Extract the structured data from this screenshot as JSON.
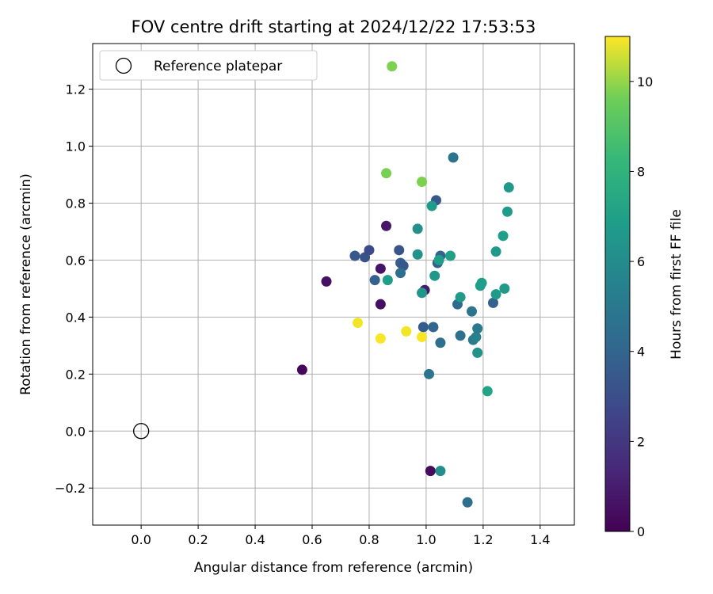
{
  "chart_data": {
    "type": "scatter",
    "title": "FOV centre drift starting at 2024/12/22 17:53:53",
    "xlabel": "Angular distance from reference (arcmin)",
    "ylabel": "Rotation from reference (arcmin)",
    "xlim": [
      -0.17,
      1.52
    ],
    "ylim": [
      -0.33,
      1.36
    ],
    "xticks": [
      0.0,
      0.2,
      0.4,
      0.6,
      0.8,
      1.0,
      1.2,
      1.4
    ],
    "xtick_labels": [
      "0.0",
      "0.2",
      "0.4",
      "0.6",
      "0.8",
      "1.0",
      "1.2",
      "1.4"
    ],
    "yticks": [
      -0.2,
      0.0,
      0.2,
      0.4,
      0.6,
      0.8,
      1.0,
      1.2
    ],
    "ytick_labels": [
      "−0.2",
      "0.0",
      "0.2",
      "0.4",
      "0.6",
      "0.8",
      "1.0",
      "1.2"
    ],
    "grid": true,
    "legend": {
      "placement": "top-left",
      "entries": [
        "Reference platepar"
      ]
    },
    "reference_point": {
      "x": 0.0,
      "y": 0.0,
      "label": "Reference platepar"
    },
    "colorbar": {
      "label": "Hours from first FF file",
      "range": [
        0,
        11
      ],
      "ticks": [
        0,
        2,
        4,
        6,
        8,
        10
      ],
      "tick_labels": [
        "0",
        "2",
        "4",
        "6",
        "8",
        "10"
      ],
      "colormap": "viridis"
    },
    "points": [
      {
        "x": 0.565,
        "y": 0.215,
        "c": 0.2
      },
      {
        "x": 0.65,
        "y": 0.525,
        "c": 0.5
      },
      {
        "x": 0.84,
        "y": 0.57,
        "c": 0.6
      },
      {
        "x": 0.84,
        "y": 0.445,
        "c": 0.4
      },
      {
        "x": 0.86,
        "y": 0.72,
        "c": 0.7
      },
      {
        "x": 0.995,
        "y": 0.495,
        "c": 0.8
      },
      {
        "x": 1.015,
        "y": -0.14,
        "c": 0.3
      },
      {
        "x": 0.75,
        "y": 0.615,
        "c": 3.0
      },
      {
        "x": 0.785,
        "y": 0.61,
        "c": 2.8
      },
      {
        "x": 0.8,
        "y": 0.635,
        "c": 2.5
      },
      {
        "x": 0.82,
        "y": 0.53,
        "c": 3.4
      },
      {
        "x": 0.905,
        "y": 0.635,
        "c": 2.9
      },
      {
        "x": 0.91,
        "y": 0.59,
        "c": 3.3
      },
      {
        "x": 0.92,
        "y": 0.58,
        "c": 3.0
      },
      {
        "x": 0.91,
        "y": 0.555,
        "c": 4.0
      },
      {
        "x": 0.99,
        "y": 0.365,
        "c": 3.2
      },
      {
        "x": 1.025,
        "y": 0.365,
        "c": 3.6
      },
      {
        "x": 1.01,
        "y": 0.2,
        "c": 4.3
      },
      {
        "x": 1.035,
        "y": 0.81,
        "c": 3.0
      },
      {
        "x": 1.04,
        "y": 0.59,
        "c": 3.3
      },
      {
        "x": 1.05,
        "y": 0.615,
        "c": 3.5
      },
      {
        "x": 1.05,
        "y": 0.31,
        "c": 4.0
      },
      {
        "x": 1.095,
        "y": 0.96,
        "c": 4.2
      },
      {
        "x": 1.11,
        "y": 0.445,
        "c": 3.8
      },
      {
        "x": 1.12,
        "y": 0.335,
        "c": 4.0
      },
      {
        "x": 1.16,
        "y": 0.42,
        "c": 4.3
      },
      {
        "x": 1.165,
        "y": 0.32,
        "c": 4.6
      },
      {
        "x": 1.175,
        "y": 0.33,
        "c": 4.8
      },
      {
        "x": 1.18,
        "y": 0.36,
        "c": 4.5
      },
      {
        "x": 1.235,
        "y": 0.45,
        "c": 3.4
      },
      {
        "x": 1.145,
        "y": -0.25,
        "c": 4.0
      },
      {
        "x": 0.865,
        "y": 0.53,
        "c": 6.1
      },
      {
        "x": 0.97,
        "y": 0.71,
        "c": 5.5
      },
      {
        "x": 0.97,
        "y": 0.62,
        "c": 5.6
      },
      {
        "x": 0.985,
        "y": 0.485,
        "c": 5.8
      },
      {
        "x": 1.02,
        "y": 0.79,
        "c": 6.0
      },
      {
        "x": 1.03,
        "y": 0.545,
        "c": 5.8
      },
      {
        "x": 1.045,
        "y": 0.6,
        "c": 6.1
      },
      {
        "x": 1.085,
        "y": 0.615,
        "c": 6.2
      },
      {
        "x": 1.05,
        "y": -0.14,
        "c": 5.4
      },
      {
        "x": 1.12,
        "y": 0.47,
        "c": 6.0
      },
      {
        "x": 1.18,
        "y": 0.275,
        "c": 5.6
      },
      {
        "x": 1.19,
        "y": 0.51,
        "c": 6.1
      },
      {
        "x": 1.195,
        "y": 0.52,
        "c": 6.1
      },
      {
        "x": 1.215,
        "y": 0.14,
        "c": 6.4
      },
      {
        "x": 1.245,
        "y": 0.48,
        "c": 6.0
      },
      {
        "x": 1.245,
        "y": 0.63,
        "c": 5.9
      },
      {
        "x": 1.27,
        "y": 0.685,
        "c": 6.1
      },
      {
        "x": 1.275,
        "y": 0.5,
        "c": 6.0
      },
      {
        "x": 1.285,
        "y": 0.77,
        "c": 6.0
      },
      {
        "x": 1.29,
        "y": 0.855,
        "c": 5.9
      },
      {
        "x": 0.86,
        "y": 0.905,
        "c": 8.7
      },
      {
        "x": 0.88,
        "y": 1.28,
        "c": 8.8
      },
      {
        "x": 0.985,
        "y": 0.875,
        "c": 8.8
      },
      {
        "x": 0.76,
        "y": 0.38,
        "c": 10.8
      },
      {
        "x": 0.84,
        "y": 0.325,
        "c": 10.9
      },
      {
        "x": 0.93,
        "y": 0.35,
        "c": 10.8
      },
      {
        "x": 0.985,
        "y": 0.33,
        "c": 10.9
      }
    ]
  }
}
